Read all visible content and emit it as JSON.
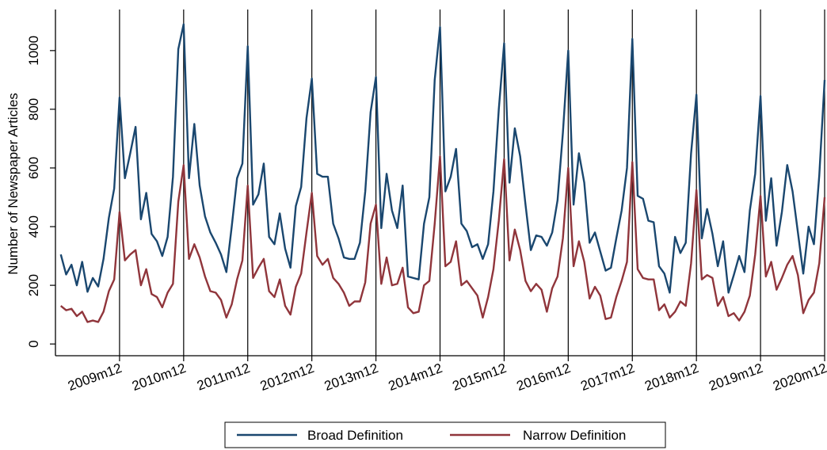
{
  "chart_data": {
    "type": "line",
    "title": "",
    "xlabel": "",
    "ylabel": "Number of Newspaper Articles",
    "ylim": [
      -40,
      1140
    ],
    "y_ticks": [
      0,
      200,
      400,
      600,
      800,
      1000
    ],
    "x_range": [
      "2008m12",
      "2020m12"
    ],
    "x_tick_labels": [
      "2009m12",
      "2010m12",
      "2011m12",
      "2012m12",
      "2013m12",
      "2014m12",
      "2015m12",
      "2016m12",
      "2017m12",
      "2018m12",
      "2019m12",
      "2020m12"
    ],
    "reference_lines_at": [
      "2009m12",
      "2010m12",
      "2011m12",
      "2012m12",
      "2013m12",
      "2014m12",
      "2015m12",
      "2016m12",
      "2017m12",
      "2018m12",
      "2019m12",
      "2020m12"
    ],
    "grid": false,
    "legend_position": "bottom",
    "x_start": "2009m1",
    "series": [
      {
        "name": "Broad Definition",
        "color": "#1a476f",
        "values": [
          305,
          237,
          270,
          200,
          280,
          178,
          225,
          196,
          290,
          430,
          530,
          840,
          565,
          650,
          740,
          425,
          515,
          375,
          350,
          300,
          365,
          570,
          1005,
          1090,
          565,
          750,
          540,
          435,
          380,
          345,
          305,
          245,
          400,
          565,
          615,
          1015,
          475,
          510,
          615,
          365,
          340,
          445,
          325,
          260,
          470,
          535,
          770,
          905,
          580,
          570,
          570,
          410,
          360,
          295,
          290,
          290,
          345,
          520,
          790,
          910,
          395,
          580,
          455,
          395,
          540,
          230,
          225,
          220,
          410,
          500,
          900,
          1080,
          520,
          570,
          665,
          410,
          385,
          330,
          340,
          290,
          340,
          520,
          800,
          1025,
          550,
          735,
          640,
          475,
          320,
          370,
          365,
          335,
          380,
          490,
          720,
          1000,
          475,
          650,
          550,
          345,
          380,
          315,
          250,
          260,
          360,
          455,
          600,
          1040,
          505,
          495,
          420,
          415,
          265,
          240,
          175,
          365,
          310,
          345,
          650,
          850,
          360,
          460,
          375,
          265,
          350,
          175,
          235,
          300,
          245,
          455,
          580,
          845,
          420,
          565,
          335,
          450,
          610,
          520,
          380,
          240,
          400,
          340,
          575,
          900
        ]
      },
      {
        "name": "Narrow Definition",
        "color": "#90353b",
        "values": [
          130,
          115,
          120,
          95,
          110,
          75,
          80,
          75,
          110,
          180,
          220,
          450,
          285,
          305,
          320,
          200,
          255,
          170,
          160,
          125,
          175,
          205,
          485,
          610,
          290,
          340,
          295,
          230,
          180,
          175,
          150,
          90,
          135,
          220,
          285,
          540,
          225,
          260,
          290,
          180,
          160,
          220,
          130,
          100,
          195,
          240,
          380,
          515,
          300,
          270,
          290,
          225,
          205,
          175,
          130,
          145,
          145,
          210,
          410,
          475,
          205,
          295,
          200,
          205,
          260,
          125,
          105,
          110,
          200,
          215,
          410,
          640,
          265,
          280,
          350,
          200,
          215,
          190,
          165,
          90,
          160,
          255,
          420,
          630,
          285,
          390,
          320,
          215,
          180,
          205,
          185,
          110,
          190,
          230,
          360,
          600,
          265,
          350,
          280,
          155,
          195,
          165,
          85,
          90,
          160,
          215,
          280,
          620,
          255,
          225,
          220,
          220,
          115,
          135,
          90,
          110,
          145,
          130,
          275,
          525,
          220,
          235,
          225,
          130,
          160,
          95,
          105,
          80,
          110,
          165,
          305,
          505,
          230,
          280,
          185,
          225,
          270,
          300,
          235,
          105,
          150,
          175,
          275,
          500
        ]
      }
    ]
  }
}
